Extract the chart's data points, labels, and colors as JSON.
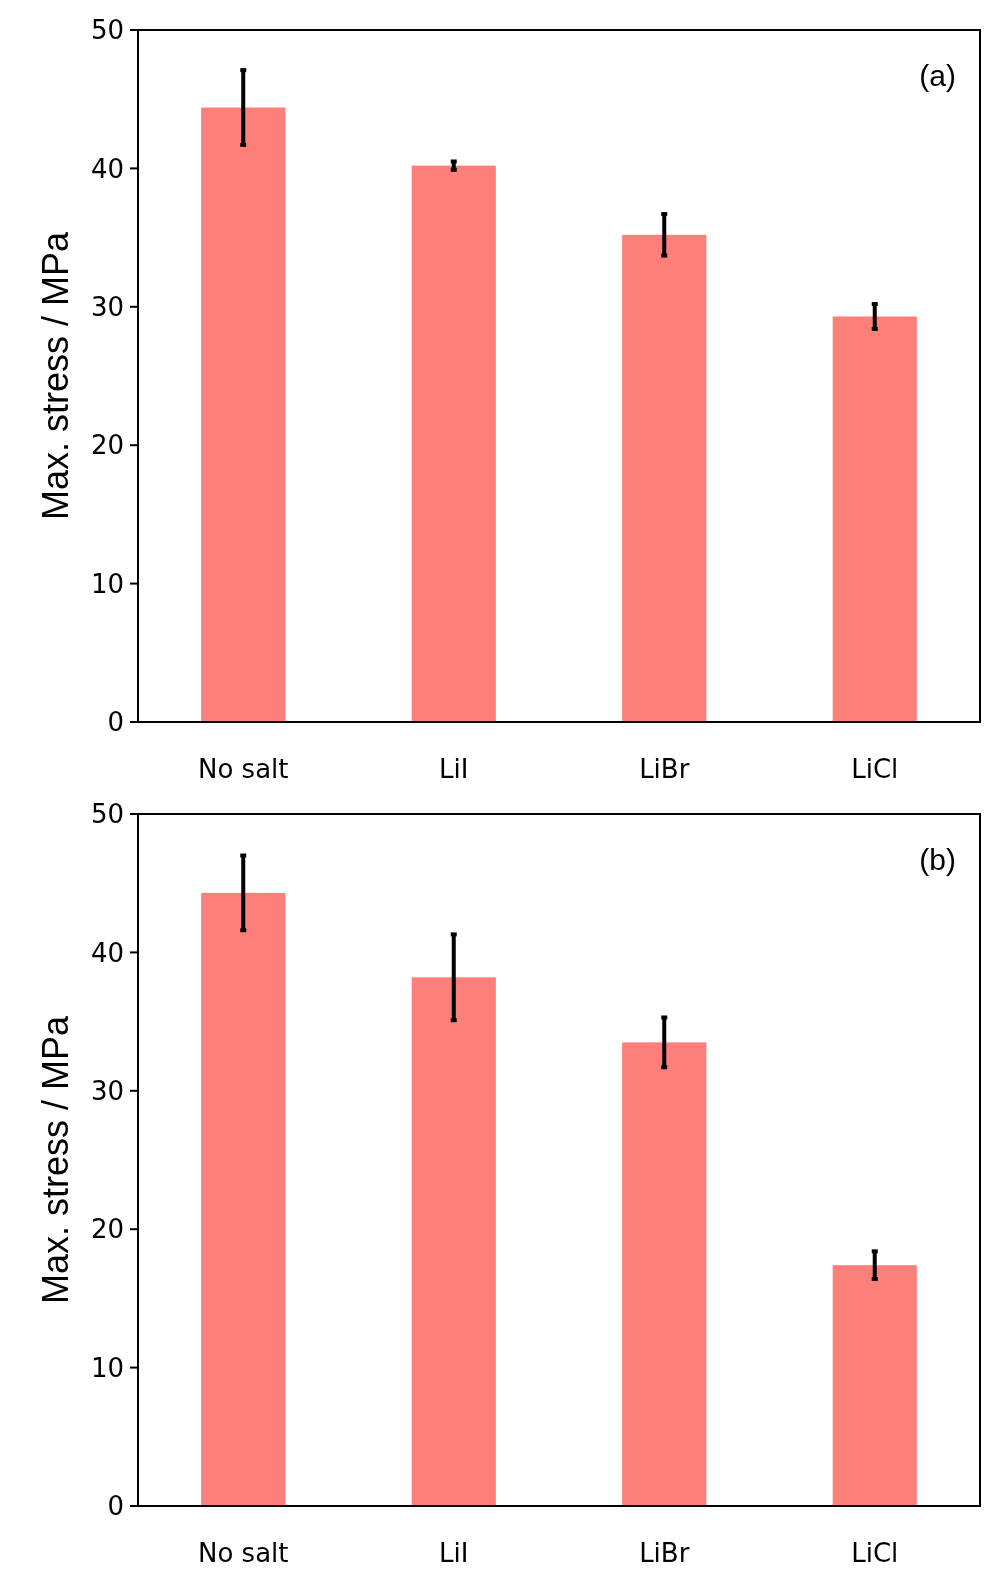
{
  "chart_data": [
    {
      "type": "bar",
      "categories": [
        "No salt",
        "LiI",
        "LiBr",
        "LiCl"
      ],
      "values": [
        44.4,
        40.2,
        35.2,
        29.3
      ],
      "errors": [
        2.7,
        0.3,
        1.5,
        0.9
      ],
      "color": "#fd7f7a",
      "ylabel": "Max. stress / MPa",
      "ylim": [
        0,
        50
      ],
      "yticks": [
        0,
        10,
        20,
        30,
        40,
        50
      ],
      "annotations": [
        "(a)"
      ]
    },
    {
      "type": "bar",
      "categories": [
        "No salt",
        "LiI",
        "LiBr",
        "LiCl"
      ],
      "values": [
        44.3,
        38.2,
        33.5,
        17.4
      ],
      "errors": [
        2.7,
        3.1,
        1.8,
        1.0
      ],
      "color": "#fd7f7a",
      "ylabel": "Max. stress / MPa",
      "ylim": [
        0,
        50
      ],
      "yticks": [
        0,
        10,
        20,
        30,
        40,
        50
      ],
      "annotations": [
        "(b)"
      ]
    }
  ]
}
